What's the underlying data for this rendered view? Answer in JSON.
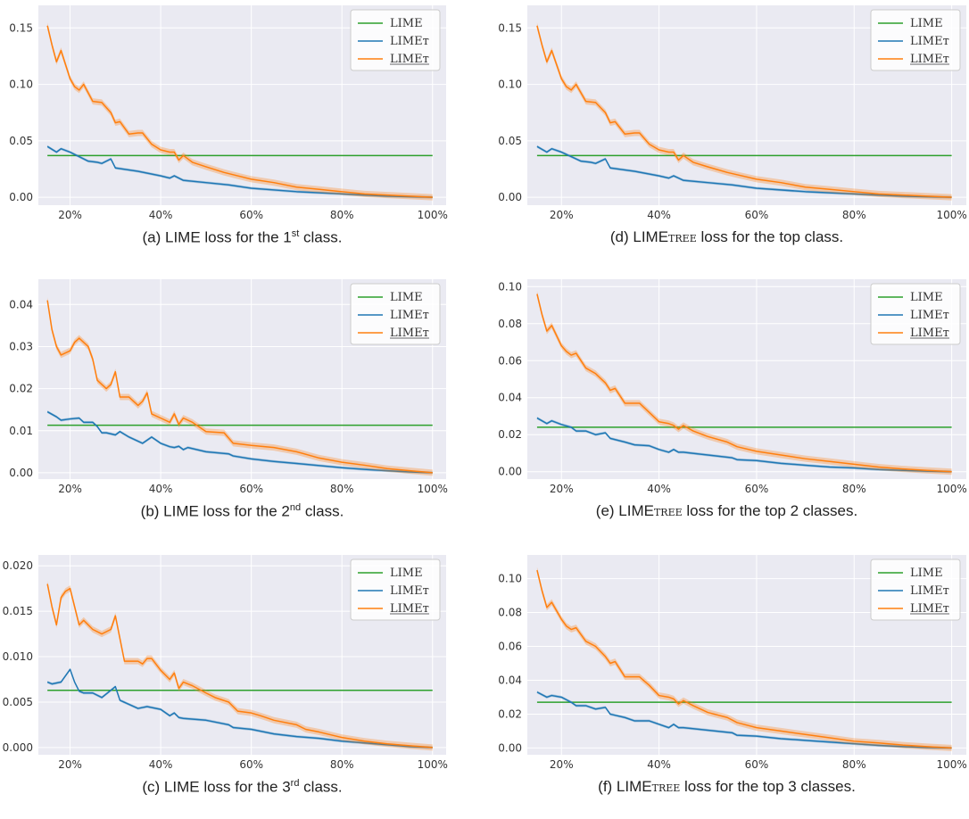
{
  "legend_labels": [
    "LIME",
    "LIMEт",
    "LIMEт"
  ],
  "colors": {
    "lime": "#2ca02c",
    "limet": "#1f77b4",
    "limet_u": "#ff7f0e",
    "bg": "#eaeaf2"
  },
  "captions": [
    {
      "prefix": "(a) LIME loss for the 1",
      "sup": "st",
      "suffix": " class.",
      "sc": ""
    },
    {
      "prefix": "(b) LIME loss for the 2",
      "sup": "nd",
      "suffix": " class.",
      "sc": ""
    },
    {
      "prefix": "(c) LIME loss for the 3",
      "sup": "rd",
      "suffix": " class.",
      "sc": ""
    },
    {
      "prefix": "(d) LIME",
      "sup": "",
      "suffix": " loss for the top class.",
      "sc": "tree"
    },
    {
      "prefix": "(e) LIME",
      "sup": "",
      "suffix": " loss for the top 2 classes.",
      "sc": "tree"
    },
    {
      "prefix": "(f) LIME",
      "sup": "",
      "suffix": " loss for the top 3 classes.",
      "sc": "tree"
    }
  ],
  "chart_data": [
    {
      "type": "line",
      "panel": "a",
      "xticks": [
        "20%",
        "40%",
        "60%",
        "80%",
        "100%"
      ],
      "yticks": [
        "0.00",
        "0.05",
        "0.10",
        "0.15"
      ],
      "xlim": [
        13,
        103
      ],
      "ylim": [
        -0.007,
        0.17
      ],
      "grid": true,
      "legend": "top-right",
      "series": [
        {
          "name": "LIME",
          "x": [
            15,
            100
          ],
          "y": [
            0.037,
            0.037
          ]
        },
        {
          "name": "LIMEт",
          "x": [
            15,
            17,
            18,
            20,
            22,
            24,
            26,
            27,
            29,
            30,
            35,
            40,
            42,
            43,
            45,
            50,
            55,
            60,
            70,
            80,
            90,
            100
          ],
          "y": [
            0.045,
            0.04,
            0.043,
            0.04,
            0.036,
            0.032,
            0.031,
            0.03,
            0.034,
            0.026,
            0.023,
            0.019,
            0.017,
            0.019,
            0.015,
            0.013,
            0.011,
            0.008,
            0.005,
            0.003,
            0.001,
            0.0
          ]
        },
        {
          "name": "LIMEт",
          "x": [
            15,
            16,
            17,
            18,
            20,
            21,
            22,
            23,
            25,
            27,
            29,
            30,
            31,
            33,
            35,
            36,
            38,
            40,
            42,
            43,
            44,
            45,
            47,
            50,
            54,
            56,
            60,
            65,
            70,
            75,
            80,
            85,
            90,
            95,
            100
          ],
          "y": [
            0.152,
            0.135,
            0.12,
            0.13,
            0.105,
            0.098,
            0.095,
            0.1,
            0.085,
            0.084,
            0.075,
            0.066,
            0.067,
            0.056,
            0.057,
            0.057,
            0.047,
            0.042,
            0.04,
            0.04,
            0.033,
            0.037,
            0.031,
            0.027,
            0.022,
            0.02,
            0.016,
            0.013,
            0.009,
            0.007,
            0.005,
            0.003,
            0.002,
            0.001,
            0.0
          ]
        }
      ]
    },
    {
      "type": "line",
      "panel": "b",
      "xticks": [
        "20%",
        "40%",
        "60%",
        "80%",
        "100%"
      ],
      "yticks": [
        "0.00",
        "0.01",
        "0.02",
        "0.03",
        "0.04"
      ],
      "xlim": [
        13,
        103
      ],
      "ylim": [
        -0.0015,
        0.046
      ],
      "grid": true,
      "legend": "top-right",
      "series": [
        {
          "name": "LIME",
          "x": [
            15,
            100
          ],
          "y": [
            0.0113,
            0.0113
          ]
        },
        {
          "name": "LIMEт",
          "x": [
            15,
            17,
            18,
            20,
            22,
            23,
            25,
            26,
            27,
            28,
            30,
            31,
            33,
            35,
            36,
            38,
            40,
            42,
            43,
            44,
            45,
            46,
            50,
            55,
            56,
            60,
            65,
            70,
            75,
            80,
            85,
            90,
            95,
            100
          ],
          "y": [
            0.0145,
            0.0133,
            0.0125,
            0.0128,
            0.013,
            0.012,
            0.012,
            0.011,
            0.0095,
            0.0095,
            0.009,
            0.0098,
            0.0085,
            0.0075,
            0.007,
            0.0085,
            0.007,
            0.0062,
            0.006,
            0.0063,
            0.0055,
            0.006,
            0.005,
            0.0045,
            0.004,
            0.0033,
            0.0027,
            0.0022,
            0.0017,
            0.0012,
            0.0008,
            0.0005,
            0.0002,
            0.0
          ]
        },
        {
          "name": "LIMEт",
          "x": [
            15,
            16,
            17,
            18,
            20,
            21,
            22,
            24,
            25,
            26,
            27,
            28,
            29,
            30,
            31,
            32,
            33,
            35,
            36,
            37,
            38,
            40,
            42,
            43,
            44,
            45,
            47,
            50,
            54,
            56,
            60,
            65,
            70,
            75,
            80,
            85,
            90,
            95,
            100
          ],
          "y": [
            0.041,
            0.034,
            0.03,
            0.028,
            0.029,
            0.031,
            0.032,
            0.03,
            0.027,
            0.022,
            0.021,
            0.02,
            0.021,
            0.024,
            0.018,
            0.018,
            0.018,
            0.016,
            0.017,
            0.019,
            0.014,
            0.013,
            0.012,
            0.014,
            0.0115,
            0.013,
            0.012,
            0.0098,
            0.0095,
            0.007,
            0.0065,
            0.006,
            0.005,
            0.0035,
            0.0025,
            0.0018,
            0.001,
            0.0005,
            0.0
          ]
        }
      ]
    },
    {
      "type": "line",
      "panel": "c",
      "xticks": [
        "20%",
        "40%",
        "60%",
        "80%",
        "100%"
      ],
      "yticks": [
        "0.000",
        "0.005",
        "0.010",
        "0.015",
        "0.020"
      ],
      "xlim": [
        13,
        103
      ],
      "ylim": [
        -0.0008,
        0.0212
      ],
      "grid": true,
      "legend": "top-right",
      "series": [
        {
          "name": "LIME",
          "x": [
            15,
            100
          ],
          "y": [
            0.0063,
            0.0063
          ]
        },
        {
          "name": "LIMEт",
          "x": [
            15,
            16,
            18,
            20,
            21,
            22,
            23,
            25,
            27,
            29,
            30,
            31,
            35,
            37,
            40,
            42,
            43,
            44,
            45,
            50,
            55,
            56,
            60,
            65,
            70,
            75,
            80,
            85,
            90,
            95,
            100
          ],
          "y": [
            0.0072,
            0.007,
            0.0072,
            0.0086,
            0.0072,
            0.0062,
            0.006,
            0.006,
            0.0055,
            0.0063,
            0.0067,
            0.0052,
            0.0043,
            0.0045,
            0.0042,
            0.0035,
            0.0038,
            0.0033,
            0.0032,
            0.003,
            0.0025,
            0.0022,
            0.002,
            0.0015,
            0.0012,
            0.001,
            0.0007,
            0.0005,
            0.0003,
            0.0001,
            0.0
          ]
        },
        {
          "name": "LIMEт",
          "x": [
            15,
            16,
            17,
            18,
            19,
            20,
            21,
            22,
            23,
            25,
            27,
            29,
            30,
            31,
            32,
            33,
            35,
            36,
            37,
            38,
            40,
            42,
            43,
            44,
            45,
            47,
            50,
            52,
            55,
            57,
            60,
            62,
            65,
            70,
            72,
            75,
            80,
            85,
            90,
            95,
            100
          ],
          "y": [
            0.018,
            0.0155,
            0.0135,
            0.0165,
            0.0172,
            0.0175,
            0.0155,
            0.0135,
            0.014,
            0.013,
            0.0125,
            0.013,
            0.0145,
            0.012,
            0.0095,
            0.0095,
            0.0095,
            0.0092,
            0.0098,
            0.0098,
            0.0085,
            0.0075,
            0.0082,
            0.0065,
            0.0072,
            0.0068,
            0.006,
            0.0055,
            0.005,
            0.004,
            0.0038,
            0.0035,
            0.003,
            0.0025,
            0.002,
            0.0017,
            0.0011,
            0.0007,
            0.0004,
            0.0002,
            0.0
          ]
        }
      ]
    },
    {
      "type": "line",
      "panel": "d",
      "xticks": [
        "20%",
        "40%",
        "60%",
        "80%",
        "100%"
      ],
      "yticks": [
        "0.00",
        "0.05",
        "0.10",
        "0.15"
      ],
      "xlim": [
        13,
        103
      ],
      "ylim": [
        -0.007,
        0.17
      ],
      "grid": true,
      "legend": "top-right",
      "series": [
        {
          "name": "LIME",
          "x": [
            15,
            100
          ],
          "y": [
            0.037,
            0.037
          ]
        },
        {
          "name": "LIMEт",
          "x": [
            15,
            17,
            18,
            20,
            22,
            24,
            26,
            27,
            29,
            30,
            35,
            40,
            42,
            43,
            45,
            50,
            55,
            60,
            70,
            80,
            90,
            100
          ],
          "y": [
            0.045,
            0.04,
            0.043,
            0.04,
            0.036,
            0.032,
            0.031,
            0.03,
            0.034,
            0.026,
            0.023,
            0.019,
            0.017,
            0.019,
            0.015,
            0.013,
            0.011,
            0.008,
            0.005,
            0.003,
            0.001,
            0.0
          ]
        },
        {
          "name": "LIMEт",
          "x": [
            15,
            16,
            17,
            18,
            20,
            21,
            22,
            23,
            25,
            27,
            29,
            30,
            31,
            33,
            35,
            36,
            38,
            40,
            42,
            43,
            44,
            45,
            47,
            50,
            54,
            56,
            60,
            65,
            70,
            75,
            80,
            85,
            90,
            95,
            100
          ],
          "y": [
            0.152,
            0.135,
            0.12,
            0.13,
            0.105,
            0.098,
            0.095,
            0.1,
            0.085,
            0.084,
            0.075,
            0.066,
            0.067,
            0.056,
            0.057,
            0.057,
            0.047,
            0.042,
            0.04,
            0.04,
            0.033,
            0.037,
            0.031,
            0.027,
            0.022,
            0.02,
            0.016,
            0.013,
            0.009,
            0.007,
            0.005,
            0.003,
            0.002,
            0.001,
            0.0
          ]
        }
      ]
    },
    {
      "type": "line",
      "panel": "e",
      "xticks": [
        "20%",
        "40%",
        "60%",
        "80%",
        "100%"
      ],
      "yticks": [
        "0.00",
        "0.02",
        "0.04",
        "0.06",
        "0.08",
        "0.10"
      ],
      "xlim": [
        13,
        103
      ],
      "ylim": [
        -0.004,
        0.104
      ],
      "grid": true,
      "legend": "top-right",
      "series": [
        {
          "name": "LIME",
          "x": [
            15,
            100
          ],
          "y": [
            0.024,
            0.024
          ]
        },
        {
          "name": "LIMEт",
          "x": [
            15,
            17,
            18,
            20,
            22,
            23,
            25,
            27,
            29,
            30,
            33,
            35,
            38,
            40,
            42,
            43,
            44,
            45,
            50,
            55,
            56,
            60,
            65,
            70,
            75,
            80,
            85,
            90,
            95,
            100
          ],
          "y": [
            0.029,
            0.026,
            0.0275,
            0.0255,
            0.024,
            0.022,
            0.022,
            0.02,
            0.021,
            0.018,
            0.016,
            0.0145,
            0.014,
            0.012,
            0.0105,
            0.012,
            0.0105,
            0.0105,
            0.009,
            0.0075,
            0.0065,
            0.006,
            0.0045,
            0.0035,
            0.0025,
            0.002,
            0.0012,
            0.0007,
            0.0003,
            0.0
          ]
        },
        {
          "name": "LIMEт",
          "x": [
            15,
            16,
            17,
            18,
            20,
            21,
            22,
            23,
            25,
            27,
            29,
            30,
            31,
            33,
            35,
            36,
            38,
            40,
            42,
            43,
            44,
            45,
            47,
            50,
            54,
            56,
            60,
            65,
            70,
            75,
            80,
            85,
            90,
            95,
            100
          ],
          "y": [
            0.096,
            0.085,
            0.076,
            0.079,
            0.068,
            0.065,
            0.063,
            0.064,
            0.056,
            0.053,
            0.048,
            0.044,
            0.045,
            0.037,
            0.037,
            0.037,
            0.032,
            0.027,
            0.026,
            0.025,
            0.023,
            0.025,
            0.022,
            0.019,
            0.016,
            0.0135,
            0.011,
            0.009,
            0.007,
            0.0055,
            0.004,
            0.0025,
            0.0015,
            0.0007,
            0.0
          ]
        }
      ]
    },
    {
      "type": "line",
      "panel": "f",
      "xticks": [
        "20%",
        "40%",
        "60%",
        "80%",
        "100%"
      ],
      "yticks": [
        "0.00",
        "0.02",
        "0.04",
        "0.06",
        "0.08",
        "0.10"
      ],
      "xlim": [
        13,
        103
      ],
      "ylim": [
        -0.004,
        0.114
      ],
      "grid": true,
      "legend": "top-right",
      "series": [
        {
          "name": "LIME",
          "x": [
            15,
            100
          ],
          "y": [
            0.027,
            0.027
          ]
        },
        {
          "name": "LIMEт",
          "x": [
            15,
            17,
            18,
            20,
            22,
            23,
            25,
            27,
            29,
            30,
            33,
            35,
            38,
            40,
            42,
            43,
            44,
            45,
            50,
            55,
            56,
            60,
            65,
            70,
            75,
            80,
            85,
            90,
            95,
            100
          ],
          "y": [
            0.033,
            0.03,
            0.031,
            0.03,
            0.027,
            0.025,
            0.025,
            0.023,
            0.024,
            0.02,
            0.018,
            0.016,
            0.016,
            0.014,
            0.012,
            0.014,
            0.012,
            0.012,
            0.0105,
            0.009,
            0.0075,
            0.007,
            0.0055,
            0.0045,
            0.0035,
            0.0025,
            0.0015,
            0.0008,
            0.0003,
            0.0
          ]
        },
        {
          "name": "LIMEт",
          "x": [
            15,
            16,
            17,
            18,
            20,
            21,
            22,
            23,
            25,
            27,
            29,
            30,
            31,
            33,
            35,
            36,
            38,
            40,
            42,
            43,
            44,
            45,
            47,
            50,
            54,
            56,
            60,
            65,
            70,
            75,
            80,
            85,
            90,
            95,
            100
          ],
          "y": [
            0.105,
            0.093,
            0.083,
            0.086,
            0.076,
            0.072,
            0.07,
            0.071,
            0.063,
            0.06,
            0.054,
            0.05,
            0.051,
            0.042,
            0.042,
            0.042,
            0.037,
            0.031,
            0.03,
            0.029,
            0.026,
            0.028,
            0.025,
            0.021,
            0.018,
            0.015,
            0.012,
            0.01,
            0.008,
            0.006,
            0.004,
            0.003,
            0.0017,
            0.0008,
            0.0
          ]
        }
      ]
    }
  ]
}
